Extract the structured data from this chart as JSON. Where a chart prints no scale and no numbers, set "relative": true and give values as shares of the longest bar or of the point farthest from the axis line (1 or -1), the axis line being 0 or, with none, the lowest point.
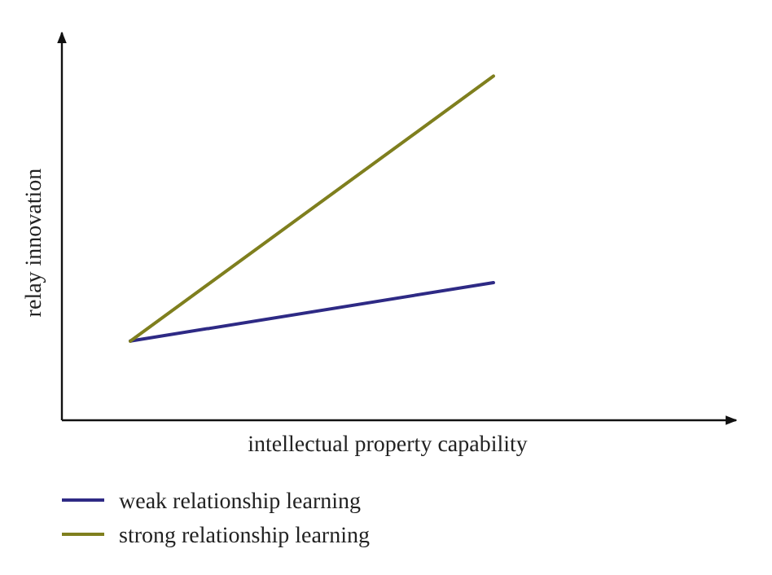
{
  "chart_data": {
    "type": "line",
    "relative": true,
    "xlabel": "intellectual property capability",
    "ylabel": "relay innovation",
    "categories": [
      null,
      null
    ],
    "legend": "bottom left",
    "marker": "none",
    "line_style": "solid",
    "series": [
      {
        "name": "weak relationship learning",
        "color": "#2e2a85",
        "values": [
          0.23,
          0.4
        ]
      },
      {
        "name": "strong relationship learning",
        "color": "#7f7f1e",
        "values": [
          0.23,
          1
        ]
      }
    ]
  }
}
